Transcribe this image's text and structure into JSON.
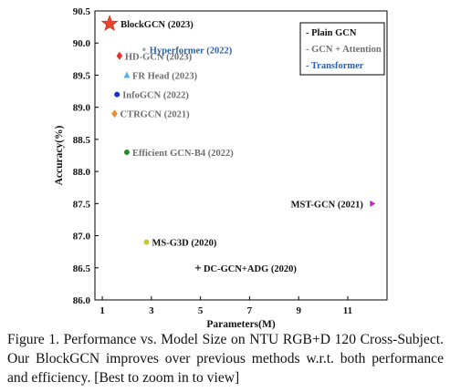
{
  "caption": "Figure 1. Performance vs. Model Size on NTU RGB+D 120 Cross-Subject. Our BlockGCN improves over previous methods w.r.t. both performance and efficiency. [Best to zoom in to view]",
  "chart_data": {
    "type": "scatter",
    "xlabel": "Parameters(M)",
    "ylabel": "Accuracy(%)",
    "xlim": [
      0.7,
      12.6
    ],
    "ylim": [
      86.0,
      90.5
    ],
    "xticks": [
      1,
      3,
      5,
      7,
      9,
      11
    ],
    "yticks": [
      86.0,
      86.5,
      87.0,
      87.5,
      88.0,
      88.5,
      89.0,
      89.5,
      90.0,
      90.5
    ],
    "grid": false,
    "legend_position": "top-right",
    "legend": [
      {
        "label": "- Plain GCN",
        "color": "#111111"
      },
      {
        "label": "- GCN + Attention",
        "color": "#6e6e6e"
      },
      {
        "label": "- Transformer",
        "color": "#2f5fa8"
      }
    ],
    "points": [
      {
        "name": "BlockGCN (2023)",
        "x": 1.3,
        "y": 90.3,
        "marker": "star",
        "color": "#e8432c",
        "label_color": "#111111",
        "group": "Plain GCN"
      },
      {
        "name": "Hyperformer (2022)",
        "x": 2.7,
        "y": 89.9,
        "marker": "circle",
        "color": "#9aa8b8",
        "label_color": "#2f5fa8",
        "group": "Transformer"
      },
      {
        "name": "HD-GCN (2023)",
        "x": 1.7,
        "y": 89.8,
        "marker": "diamond",
        "color": "#e0332f",
        "label_color": "#6e6e6e",
        "group": "GCN + Attention"
      },
      {
        "name": "FR Head (2023)",
        "x": 2.0,
        "y": 89.5,
        "marker": "triangle",
        "color": "#5fb0d8",
        "label_color": "#6e6e6e",
        "group": "GCN + Attention"
      },
      {
        "name": "InfoGCN (2022)",
        "x": 1.6,
        "y": 89.2,
        "marker": "circle",
        "color": "#1a2fd0",
        "label_color": "#6e6e6e",
        "group": "GCN + Attention"
      },
      {
        "name": "CTRGCN (2021)",
        "x": 1.5,
        "y": 88.9,
        "marker": "diamond",
        "color": "#f0902a",
        "label_color": "#6e6e6e",
        "group": "GCN + Attention"
      },
      {
        "name": "Efficient GCN-B4 (2022)",
        "x": 2.0,
        "y": 88.3,
        "marker": "circle",
        "color": "#2f8a2f",
        "label_color": "#6e6e6e",
        "group": "GCN + Attention"
      },
      {
        "name": "MST-GCN (2021)",
        "x": 12.0,
        "y": 87.5,
        "marker": "triangle-right",
        "color": "#c026c0",
        "label_color": "#111111",
        "group": "Plain GCN"
      },
      {
        "name": "MS-G3D (2020)",
        "x": 2.8,
        "y": 86.9,
        "marker": "circle",
        "color": "#c8c83a",
        "label_color": "#111111",
        "group": "Plain GCN"
      },
      {
        "name": "DC-GCN+ADG (2020)",
        "x": 4.9,
        "y": 86.5,
        "marker": "plus",
        "color": "#222222",
        "label_color": "#111111",
        "group": "Plain GCN"
      }
    ]
  }
}
